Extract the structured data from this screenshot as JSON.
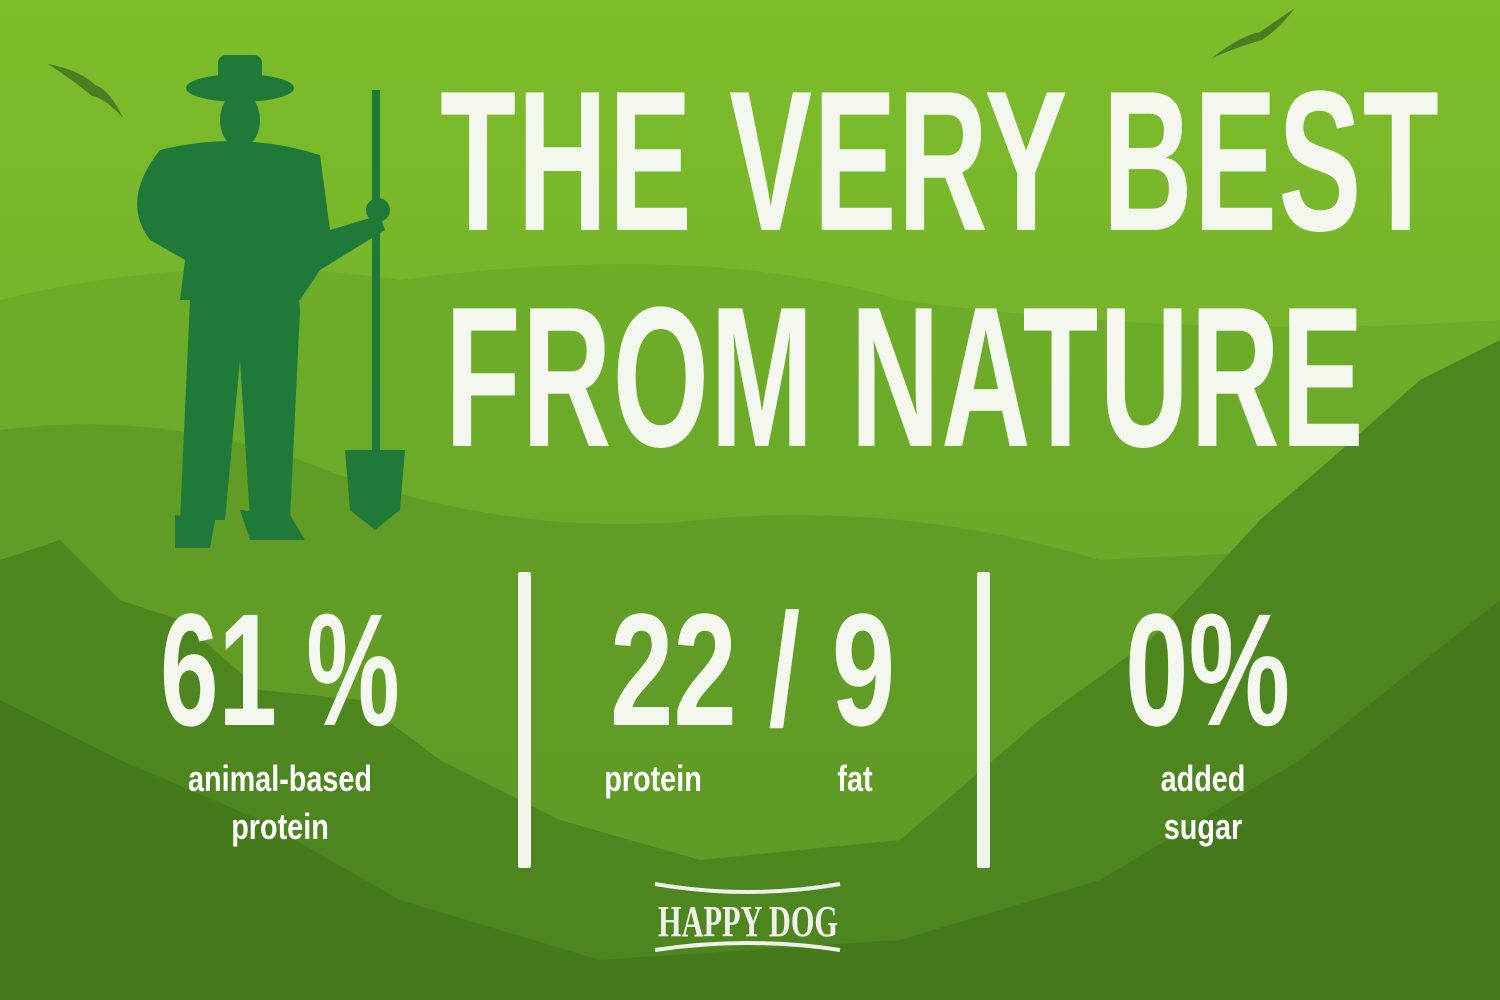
{
  "headline": {
    "line1": "THE VERY BEST",
    "line2": "FROM NATURE"
  },
  "stats": [
    {
      "value": "61 %",
      "label_line1": "animal-based",
      "label_line2": "protein"
    },
    {
      "value": "22 / 9",
      "label_left": "protein",
      "label_right": "fat"
    },
    {
      "value": "0%",
      "label_line1": "added",
      "label_line2": "sugar"
    }
  ],
  "logo": {
    "text": "HAPPY DOG"
  },
  "colors": {
    "background_top": "#7dbd2a",
    "background_bottom": "#3f6e1c",
    "farmer": "#1f7a3a",
    "text": "#f4f7ee"
  },
  "illustration": {
    "figure": "farmer-with-shovel",
    "birds": 2
  }
}
